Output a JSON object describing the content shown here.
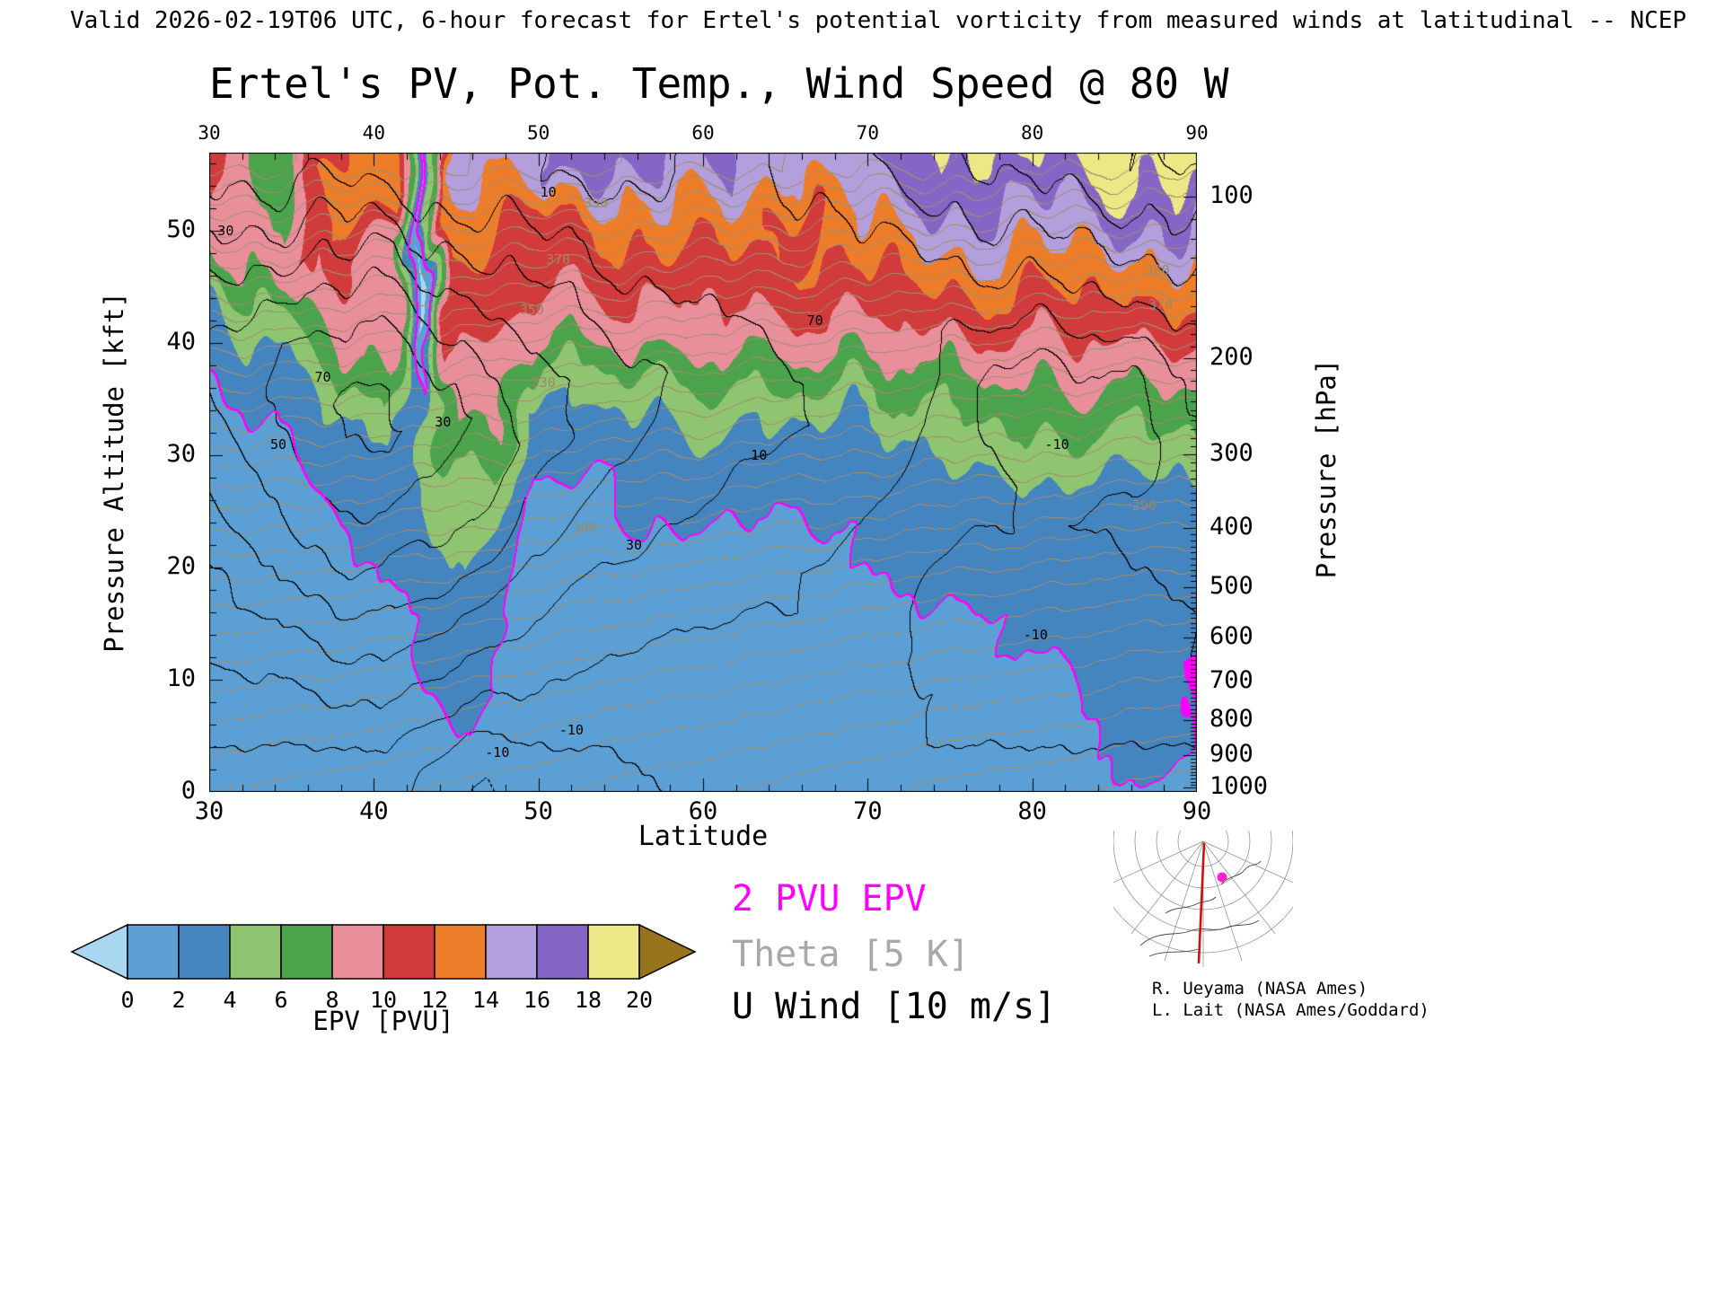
{
  "header": {
    "valid_line": "Valid 2026-02-19T06 UTC, 6-hour forecast for Ertel's potential vorticity from measured winds at latitudinal -- NCEP"
  },
  "title": "Ertel's PV, Pot. Temp., Wind Speed @ 80 W",
  "axes": {
    "x": {
      "label": "Latitude",
      "min": 30,
      "max": 90,
      "major_ticks": [
        30,
        40,
        50,
        60,
        70,
        80,
        90
      ],
      "minor_step": 2
    },
    "y_left": {
      "label": "Pressure Altitude [kft]",
      "min": 0,
      "max": 57,
      "major_ticks": [
        0,
        10,
        20,
        30,
        40,
        50
      ],
      "minor_step": 2
    },
    "y_right": {
      "label": "Pressure [hPa]",
      "major_ticks": [
        100,
        200,
        300,
        400,
        500,
        600,
        700,
        800,
        900,
        1000
      ]
    }
  },
  "colorbar": {
    "title": "EPV [PVU]",
    "levels": [
      0,
      2,
      4,
      6,
      8,
      10,
      12,
      14,
      16,
      18,
      20
    ],
    "colors": {
      "under": "#a9d7f2",
      "segments": [
        "#5b9fd4",
        "#4484bf",
        "#8fc470",
        "#4ba34b",
        "#e98f9c",
        "#d13b3b",
        "#ee7d2a",
        "#b29fdb",
        "#8566c6",
        "#ece885"
      ],
      "over": "#97731c"
    },
    "line_colors": {
      "theta": "#a08e70",
      "wind": "#000000",
      "epv2": "#ff00ff"
    }
  },
  "legend": [
    {
      "label": "2 PVU EPV",
      "color": "#ff00ff"
    },
    {
      "label": "Theta [5 K]",
      "color": "#a8a8a8"
    },
    {
      "label": "U Wind [10 m/s]",
      "color": "#000000"
    }
  ],
  "credits": [
    "R. Ueyama (NASA Ames)",
    "L. Lait (NASA Ames/Goddard)"
  ],
  "chart_data": {
    "type": "heatmap",
    "title": "Ertel's PV, Pot. Temp., Wind Speed @ 80 W",
    "xlabel": "Latitude",
    "ylabel_left": "Pressure Altitude [kft]",
    "ylabel_right": "Pressure [hPa]",
    "x_range": [
      30,
      90
    ],
    "y_range_kft": [
      0,
      57
    ],
    "x_lat": [
      30,
      34,
      38,
      41,
      43,
      45,
      47,
      50,
      54,
      58,
      62,
      66,
      70,
      74,
      78,
      82,
      86,
      90
    ],
    "y_alt_kft": [
      0,
      4,
      8,
      12,
      16,
      20,
      24,
      28,
      32,
      36,
      40,
      44,
      48,
      52,
      56
    ],
    "epv_pvu": [
      [
        0.5,
        0.5,
        0.5,
        0.5,
        0.5,
        1,
        1,
        1,
        1,
        1.5,
        2.5,
        4,
        8,
        10,
        11
      ],
      [
        0.5,
        0.5,
        0.5,
        0.5,
        1,
        1,
        1,
        1.5,
        2,
        3,
        4,
        6,
        9,
        8,
        6
      ],
      [
        0.5,
        1,
        1,
        1,
        1,
        1.5,
        2,
        2.5,
        3,
        5,
        8,
        9,
        12,
        14,
        12
      ],
      [
        0.5,
        1,
        1,
        1,
        1.5,
        2,
        2.5,
        3,
        4,
        7,
        10,
        9,
        8,
        12,
        14
      ],
      [
        1,
        1.5,
        2,
        2.5,
        3,
        3.5,
        4,
        4,
        3,
        2,
        0.5,
        -0.5,
        -0.5,
        0,
        1
      ],
      [
        1.5,
        2,
        2.5,
        3,
        3.5,
        4,
        5,
        6,
        8,
        9,
        10,
        11,
        12,
        13,
        14
      ],
      [
        1,
        1.5,
        2,
        2,
        2.5,
        3,
        4,
        6,
        8,
        9,
        10,
        11,
        12,
        13,
        15
      ],
      [
        0.5,
        0.5,
        1,
        1,
        1,
        1.5,
        1.5,
        2,
        2,
        4,
        8,
        10,
        10,
        12,
        16
      ],
      [
        0.5,
        0.5,
        1,
        1,
        1,
        1.5,
        2,
        2,
        3,
        5,
        8,
        10,
        11,
        13,
        16
      ],
      [
        0.5,
        1,
        1,
        1,
        1.5,
        2,
        2,
        3,
        4,
        6,
        9,
        10,
        12,
        14,
        16
      ],
      [
        0.5,
        1,
        1,
        1,
        1,
        1.5,
        2,
        2.5,
        4,
        6,
        9,
        11,
        12,
        14,
        16
      ],
      [
        0.5,
        1,
        1,
        1,
        1.5,
        1.5,
        2,
        2.5,
        4,
        7,
        9,
        11,
        12,
        11,
        14
      ],
      [
        1,
        1,
        1,
        1.5,
        1.5,
        2,
        2,
        2,
        2.5,
        6,
        9,
        11,
        13,
        15,
        17
      ],
      [
        1,
        1,
        1.5,
        1.5,
        2,
        2.5,
        3,
        4,
        5,
        7,
        10,
        12,
        14,
        16,
        18
      ],
      [
        1,
        1,
        1.5,
        2,
        2,
        2.5,
        3,
        4,
        6,
        8,
        10,
        12,
        14,
        16,
        18
      ],
      [
        1,
        1.5,
        2,
        2,
        2.5,
        3,
        3,
        4,
        6,
        8,
        10,
        12,
        14,
        16,
        18
      ],
      [
        2,
        3,
        2.5,
        2,
        2.5,
        3,
        3.5,
        4,
        6,
        8,
        10,
        12,
        14,
        17,
        19
      ],
      [
        1.5,
        2,
        2,
        2,
        2.5,
        3,
        3.5,
        4,
        6,
        8,
        10,
        12,
        14,
        17,
        20
      ]
    ],
    "u_wind_ms": [
      [
        5,
        10,
        15,
        20,
        25,
        30,
        35,
        40,
        45,
        50,
        50,
        45,
        35,
        25,
        15
      ],
      [
        5,
        10,
        15,
        25,
        30,
        40,
        50,
        55,
        60,
        62,
        60,
        50,
        38,
        25,
        15
      ],
      [
        5,
        10,
        20,
        30,
        40,
        50,
        58,
        65,
        70,
        72,
        65,
        55,
        40,
        28,
        15
      ],
      [
        5,
        10,
        20,
        30,
        40,
        50,
        58,
        65,
        72,
        70,
        62,
        52,
        40,
        25,
        15
      ],
      [
        -4,
        5,
        15,
        25,
        35,
        45,
        55,
        62,
        68,
        65,
        58,
        48,
        35,
        22,
        12
      ],
      [
        -8,
        -2,
        12,
        22,
        32,
        42,
        52,
        58,
        62,
        60,
        52,
        42,
        32,
        20,
        10
      ],
      [
        -12,
        -4,
        8,
        18,
        28,
        38,
        48,
        52,
        55,
        52,
        45,
        38,
        28,
        18,
        10
      ],
      [
        -6,
        0,
        8,
        15,
        20,
        28,
        35,
        40,
        45,
        45,
        40,
        32,
        24,
        15,
        10
      ],
      [
        -3,
        0,
        5,
        10,
        15,
        20,
        25,
        30,
        35,
        35,
        30,
        25,
        18,
        12,
        8
      ],
      [
        0,
        2,
        5,
        8,
        12,
        16,
        20,
        25,
        28,
        30,
        26,
        20,
        15,
        10,
        10
      ],
      [
        0,
        2,
        5,
        8,
        10,
        12,
        16,
        20,
        24,
        25,
        22,
        18,
        14,
        12,
        14
      ],
      [
        0,
        3,
        5,
        8,
        10,
        10,
        13,
        16,
        20,
        20,
        18,
        16,
        15,
        18,
        25
      ],
      [
        0,
        0,
        3,
        5,
        8,
        8,
        10,
        12,
        15,
        15,
        15,
        15,
        18,
        24,
        32
      ],
      [
        0,
        0,
        0,
        -3,
        -3,
        0,
        4,
        6,
        9,
        10,
        10,
        14,
        20,
        28,
        38
      ],
      [
        0,
        0,
        -4,
        -8,
        -10,
        -5,
        0,
        2,
        -4,
        -6,
        5,
        15,
        24,
        33,
        43
      ],
      [
        0,
        0,
        -5,
        -8,
        -8,
        -4,
        0,
        -4,
        -8,
        -6,
        6,
        18,
        27,
        37,
        47
      ],
      [
        0,
        0,
        -3,
        -5,
        -4,
        0,
        2,
        -2,
        -5,
        -3,
        10,
        21,
        30,
        40,
        50
      ],
      [
        0,
        0,
        0,
        0,
        0,
        2,
        4,
        6,
        9,
        12,
        16,
        24,
        33,
        43,
        53
      ]
    ],
    "theta_surface_k": [
      300,
      298.5,
      297,
      295.5,
      294.5,
      293.5,
      292.5,
      291,
      288.5,
      286.5,
      284.5,
      282.5,
      280.5,
      278.5,
      277,
      275.5,
      273.5,
      272
    ],
    "theta_alt_increment_k": [
      0,
      6,
      13,
      21,
      29,
      38,
      48,
      58,
      69,
      80,
      92,
      105,
      118,
      132,
      147
    ],
    "contour_settings": {
      "epv_highlight_pvu": 2,
      "u_wind_interval_ms": 10,
      "theta_interval_k": 5
    }
  },
  "annotations": [
    {
      "text": "30",
      "lat": 31.0,
      "alt": 50.0,
      "type": "wind"
    },
    {
      "text": "50",
      "lat": 34.2,
      "alt": 31.0,
      "type": "wind"
    },
    {
      "text": "70",
      "lat": 36.9,
      "alt": 37.0,
      "type": "wind"
    },
    {
      "text": "30",
      "lat": 44.2,
      "alt": 33.0,
      "type": "wind"
    },
    {
      "text": "-10",
      "lat": 47.5,
      "alt": 3.5,
      "type": "wind"
    },
    {
      "text": "-10",
      "lat": 52.0,
      "alt": 5.5,
      "type": "wind"
    },
    {
      "text": "10",
      "lat": 50.6,
      "alt": 53.5,
      "type": "wind"
    },
    {
      "text": "30",
      "lat": 55.8,
      "alt": 22.0,
      "type": "wind"
    },
    {
      "text": "10",
      "lat": 63.4,
      "alt": 30.0,
      "type": "wind"
    },
    {
      "text": "70",
      "lat": 66.8,
      "alt": 42.0,
      "type": "wind"
    },
    {
      "text": "-10",
      "lat": 80.2,
      "alt": 14.0,
      "type": "wind"
    },
    {
      "text": "-10",
      "lat": 81.5,
      "alt": 31.0,
      "type": "wind"
    },
    {
      "text": "330",
      "lat": 50.3,
      "alt": 36.5,
      "type": "theta"
    },
    {
      "text": "350",
      "lat": 49.6,
      "alt": 43.0,
      "type": "theta"
    },
    {
      "text": "370",
      "lat": 51.2,
      "alt": 47.5,
      "type": "theta"
    },
    {
      "text": "390",
      "lat": 53.5,
      "alt": 52.5,
      "type": "theta"
    },
    {
      "text": "380",
      "lat": 87.6,
      "alt": 46.5,
      "type": "theta"
    },
    {
      "text": "370",
      "lat": 87.8,
      "alt": 43.5,
      "type": "theta"
    },
    {
      "text": "290",
      "lat": 86.8,
      "alt": 25.5,
      "type": "theta"
    },
    {
      "text": "300",
      "lat": 52.8,
      "alt": 23.5,
      "type": "theta"
    }
  ]
}
